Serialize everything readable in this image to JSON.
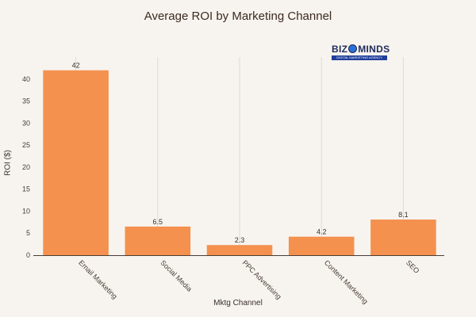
{
  "chart_data": {
    "type": "bar",
    "title": "Average ROI by Marketing Channel",
    "xlabel": "Mktg Channel",
    "ylabel": "ROI ($)",
    "categories": [
      "Email Marketing",
      "Social Media",
      "PPC Advertising",
      "Content Marketing",
      "SEO"
    ],
    "values": [
      42,
      6.5,
      2.3,
      4.2,
      8.1
    ],
    "data_labels": [
      "42",
      "6.5",
      "2.3",
      "4.2",
      "8.1"
    ],
    "yticks": [
      0,
      5,
      10,
      15,
      20,
      25,
      30,
      35,
      40
    ],
    "ylim": [
      0,
      45
    ],
    "bar_color": "#f4914f",
    "grid": true
  },
  "logo": {
    "word_prefix": "BIZ",
    "word_suffix": "MINDS",
    "tagline": "DIGITAL MARKETING AGENCY"
  }
}
